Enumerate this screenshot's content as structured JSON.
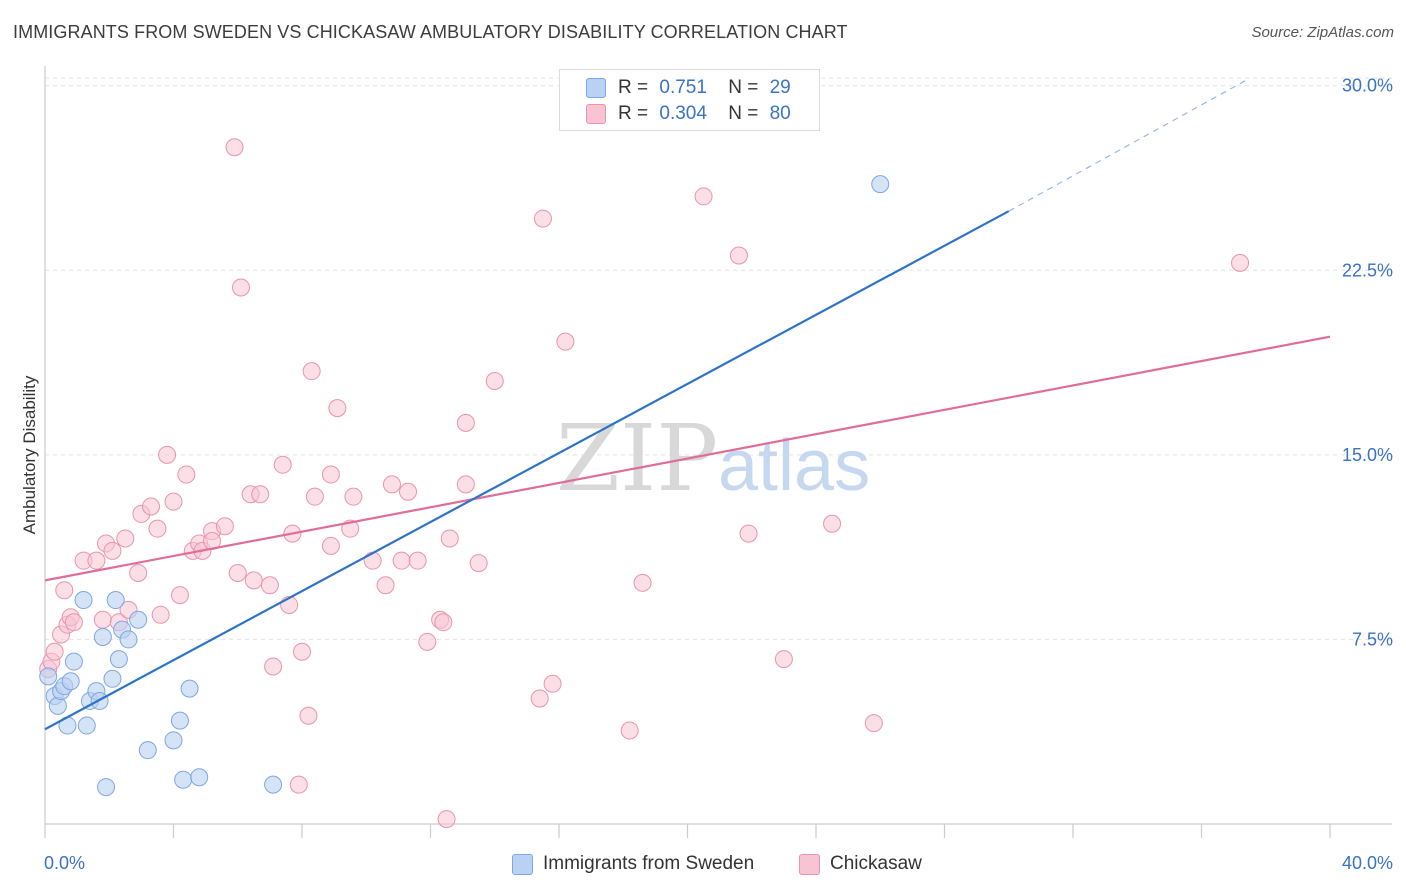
{
  "header": {
    "title": "IMMIGRANTS FROM SWEDEN VS CHICKASAW AMBULATORY DISABILITY CORRELATION CHART",
    "source": "Source: ZipAtlas.com"
  },
  "watermark": {
    "part1": "ZIP",
    "part2": "atlas"
  },
  "legend": {
    "rows": [
      {
        "r_label": "R =",
        "r_value": "0.751",
        "n_label": "N =",
        "n_value": "29",
        "color": "#a9c6ef"
      },
      {
        "r_label": "R =",
        "r_value": "0.304",
        "n_label": "N =",
        "n_value": "80",
        "color": "#f5b8cb"
      }
    ]
  },
  "colors": {
    "blue_fill": "#b9d1f2",
    "blue_stroke": "#7ea6e0",
    "blue_line": "#2f73c8",
    "pink_fill": "#f8c4d3",
    "pink_stroke": "#eb93ae",
    "pink_line": "#e06d98",
    "tick_label": "#3a72c6"
  },
  "chart_data": {
    "type": "scatter",
    "title": "IMMIGRANTS FROM SWEDEN VS CHICKASAW AMBULATORY DISABILITY CORRELATION CHART",
    "xlabel": "",
    "ylabel": "Ambulatory Disability",
    "xlim": [
      0,
      40
    ],
    "ylim": [
      0,
      30.8
    ],
    "x_tick_labels": [
      "0.0%",
      "40.0%"
    ],
    "y_ticks": [
      7.5,
      15.0,
      22.5,
      30.0
    ],
    "y_tick_labels": [
      "7.5%",
      "15.0%",
      "22.5%",
      "30.0%"
    ],
    "grid": true,
    "legend_position": "top-center",
    "series": [
      {
        "name": "Immigrants from Sweden",
        "r": 0.751,
        "n": 29,
        "trend": {
          "x0": 0,
          "y0": 3.85,
          "x1": 30,
          "y1": 24.9,
          "dashed_to_x": 37.5,
          "dashed_to_y": 30.3
        },
        "points": [
          [
            0.1,
            6.0
          ],
          [
            0.3,
            5.2
          ],
          [
            0.4,
            4.8
          ],
          [
            0.5,
            5.4
          ],
          [
            0.6,
            5.6
          ],
          [
            0.7,
            4.0
          ],
          [
            0.8,
            5.8
          ],
          [
            0.9,
            6.6
          ],
          [
            1.2,
            9.1
          ],
          [
            1.3,
            4.0
          ],
          [
            1.4,
            5.0
          ],
          [
            1.6,
            5.4
          ],
          [
            1.7,
            5.0
          ],
          [
            1.8,
            7.6
          ],
          [
            1.9,
            1.5
          ],
          [
            2.1,
            5.9
          ],
          [
            2.2,
            9.1
          ],
          [
            2.3,
            6.7
          ],
          [
            2.4,
            7.9
          ],
          [
            2.6,
            7.5
          ],
          [
            2.9,
            8.3
          ],
          [
            3.2,
            3.0
          ],
          [
            4.0,
            3.4
          ],
          [
            4.2,
            4.2
          ],
          [
            4.3,
            1.8
          ],
          [
            4.5,
            5.5
          ],
          [
            4.8,
            1.9
          ],
          [
            7.1,
            1.6
          ],
          [
            26.0,
            26.0
          ]
        ]
      },
      {
        "name": "Chickasaw",
        "r": 0.304,
        "n": 80,
        "trend": {
          "x0": 0,
          "y0": 9.9,
          "x1": 40,
          "y1": 19.8
        },
        "points": [
          [
            0.1,
            6.3
          ],
          [
            0.2,
            6.6
          ],
          [
            0.3,
            7.0
          ],
          [
            0.5,
            7.7
          ],
          [
            0.6,
            9.5
          ],
          [
            0.7,
            8.1
          ],
          [
            0.8,
            8.4
          ],
          [
            0.9,
            8.2
          ],
          [
            1.2,
            10.7
          ],
          [
            1.6,
            10.7
          ],
          [
            1.8,
            8.3
          ],
          [
            1.9,
            11.4
          ],
          [
            2.1,
            11.1
          ],
          [
            2.3,
            8.2
          ],
          [
            2.5,
            11.6
          ],
          [
            2.6,
            8.7
          ],
          [
            2.9,
            10.2
          ],
          [
            3.0,
            12.6
          ],
          [
            3.3,
            12.9
          ],
          [
            3.5,
            12.0
          ],
          [
            3.6,
            8.5
          ],
          [
            3.8,
            15.0
          ],
          [
            4.0,
            13.1
          ],
          [
            4.2,
            9.3
          ],
          [
            4.4,
            14.2
          ],
          [
            4.6,
            11.1
          ],
          [
            4.8,
            11.4
          ],
          [
            4.9,
            11.1
          ],
          [
            5.2,
            11.9
          ],
          [
            5.2,
            11.5
          ],
          [
            5.6,
            12.1
          ],
          [
            5.9,
            27.5
          ],
          [
            6.0,
            10.2
          ],
          [
            6.1,
            21.8
          ],
          [
            6.4,
            13.4
          ],
          [
            6.5,
            9.9
          ],
          [
            6.7,
            13.4
          ],
          [
            7.0,
            9.7
          ],
          [
            7.1,
            6.4
          ],
          [
            7.4,
            14.6
          ],
          [
            7.6,
            8.9
          ],
          [
            7.7,
            11.8
          ],
          [
            7.9,
            1.6
          ],
          [
            8.0,
            7.0
          ],
          [
            8.2,
            4.4
          ],
          [
            8.3,
            18.4
          ],
          [
            8.4,
            13.3
          ],
          [
            8.9,
            14.2
          ],
          [
            8.9,
            11.3
          ],
          [
            9.1,
            16.9
          ],
          [
            9.5,
            12.0
          ],
          [
            9.6,
            13.3
          ],
          [
            10.2,
            10.7
          ],
          [
            10.6,
            9.7
          ],
          [
            10.8,
            13.8
          ],
          [
            11.1,
            10.7
          ],
          [
            11.3,
            13.5
          ],
          [
            11.6,
            10.7
          ],
          [
            11.9,
            7.4
          ],
          [
            12.3,
            8.3
          ],
          [
            12.4,
            8.2
          ],
          [
            12.5,
            0.2
          ],
          [
            12.6,
            11.6
          ],
          [
            13.1,
            16.3
          ],
          [
            13.1,
            13.8
          ],
          [
            13.5,
            10.6
          ],
          [
            14.0,
            18.0
          ],
          [
            15.4,
            5.1
          ],
          [
            15.5,
            24.6
          ],
          [
            15.8,
            5.7
          ],
          [
            16.2,
            19.6
          ],
          [
            16.9,
            29.7
          ],
          [
            18.2,
            3.8
          ],
          [
            18.6,
            9.8
          ],
          [
            20.5,
            25.5
          ],
          [
            21.6,
            23.1
          ],
          [
            21.9,
            11.8
          ],
          [
            23.0,
            6.7
          ],
          [
            24.5,
            12.2
          ],
          [
            25.8,
            4.1
          ],
          [
            37.2,
            22.8
          ]
        ]
      }
    ]
  },
  "bottom_legend": [
    {
      "label": "Immigrants from Sweden",
      "color": "#b9d1f2"
    },
    {
      "label": "Chickasaw",
      "color": "#f8c4d3"
    }
  ]
}
